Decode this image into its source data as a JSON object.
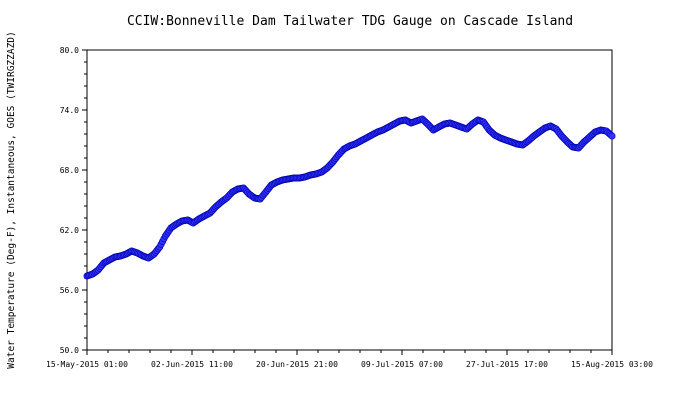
{
  "chart_data": {
    "type": "scatter",
    "title": "CCIW:Bonneville Dam Tailwater TDG Gauge on Cascade Island",
    "ylabel": "Water Temperature (Deg-F), Instantaneous, GOES (TWIRGZZAZD)",
    "xlabel": "",
    "ylim": [
      50,
      80
    ],
    "yticks": [
      50,
      56,
      62,
      68,
      74,
      80
    ],
    "ytick_labels": [
      "50.0",
      "56.0",
      "62.0",
      "68.0",
      "74.0",
      "80.0"
    ],
    "xlim": [
      "2015-05-15 01:00",
      "2015-08-15 03:00"
    ],
    "xtick_labels": [
      "15-May-2015 01:00",
      "02-Jun-2015 11:00",
      "20-Jun-2015 21:00",
      "09-Jul-2015 07:00",
      "27-Jul-2015 17:00",
      "15-Aug-2015 03:00"
    ],
    "grid": false,
    "marker_color": "#3333ff",
    "marker_edge_color": "#0000aa",
    "series": [
      {
        "x": [
          "2015-05-15 01:00",
          "2015-05-16 01:00",
          "2015-05-17 00:00",
          "2015-05-18 00:00",
          "2015-05-18 23:00",
          "2015-05-19 23:00",
          "2015-05-20 22:00",
          "2015-05-21 22:00",
          "2015-05-22 21:00",
          "2015-05-23 21:00",
          "2015-05-24 21:00",
          "2015-05-25 20:00",
          "2015-05-26 20:00",
          "2015-05-27 19:00",
          "2015-05-28 19:00",
          "2015-05-29 18:00",
          "2015-05-30 18:00",
          "2015-05-31 17:00",
          "2015-06-01 17:00",
          "2015-06-02 16:00",
          "2015-06-03 16:00",
          "2015-06-04 15:00",
          "2015-06-05 15:00",
          "2015-06-06 14:00",
          "2015-06-07 14:00",
          "2015-06-08 13:00",
          "2015-06-09 13:00",
          "2015-06-10 12:00",
          "2015-06-11 12:00",
          "2015-06-12 11:00",
          "2015-06-13 11:00",
          "2015-06-14 10:00",
          "2015-06-15 10:00",
          "2015-06-16 09:00",
          "2015-06-17 09:00",
          "2015-06-18 08:00",
          "2015-06-19 08:00",
          "2015-06-20 07:00",
          "2015-06-21 07:00",
          "2015-06-22 06:00",
          "2015-06-23 06:00",
          "2015-06-24 05:00",
          "2015-06-25 05:00",
          "2015-06-26 04:00",
          "2015-06-27 04:00",
          "2015-06-28 03:00",
          "2015-06-29 03:00",
          "2015-06-30 02:00",
          "2015-07-01 02:00",
          "2015-07-02 01:00",
          "2015-07-03 01:00",
          "2015-07-04 00:00",
          "2015-07-05 00:00",
          "2015-07-05 23:00",
          "2015-07-06 23:00",
          "2015-07-07 22:00",
          "2015-07-08 22:00",
          "2015-07-09 21:00",
          "2015-07-10 21:00",
          "2015-07-11 20:00",
          "2015-07-12 20:00",
          "2015-07-13 19:00",
          "2015-07-14 19:00",
          "2015-07-15 18:00",
          "2015-07-16 18:00",
          "2015-07-17 17:00",
          "2015-07-18 17:00",
          "2015-07-19 16:00",
          "2015-07-20 16:00",
          "2015-07-21 15:00",
          "2015-07-22 15:00",
          "2015-07-23 14:00",
          "2015-07-24 14:00",
          "2015-07-25 13:00",
          "2015-07-26 13:00",
          "2015-07-27 12:00",
          "2015-07-28 12:00",
          "2015-07-29 11:00",
          "2015-07-30 11:00",
          "2015-07-31 10:00",
          "2015-08-01 10:00",
          "2015-08-02 09:00",
          "2015-08-03 09:00",
          "2015-08-04 08:00",
          "2015-08-05 08:00",
          "2015-08-06 07:00",
          "2015-08-07 07:00",
          "2015-08-08 06:00",
          "2015-08-09 06:00",
          "2015-08-10 05:00",
          "2015-08-11 05:00",
          "2015-08-12 04:00",
          "2015-08-13 04:00",
          "2015-08-14 03:00",
          "2015-08-15 03:00"
        ],
        "y": [
          57.4,
          57.6,
          58.0,
          58.7,
          59.0,
          59.3,
          59.4,
          59.6,
          59.9,
          59.7,
          59.4,
          59.2,
          59.6,
          60.3,
          61.4,
          62.2,
          62.6,
          62.9,
          63.0,
          62.7,
          63.1,
          63.4,
          63.7,
          64.3,
          64.8,
          65.2,
          65.8,
          66.1,
          66.2,
          65.6,
          65.2,
          65.1,
          65.8,
          66.5,
          66.8,
          67.0,
          67.1,
          67.2,
          67.2,
          67.3,
          67.5,
          67.6,
          67.8,
          68.2,
          68.8,
          69.5,
          70.1,
          70.4,
          70.6,
          70.9,
          71.2,
          71.5,
          71.8,
          72.0,
          72.3,
          72.6,
          72.9,
          73.0,
          72.7,
          72.9,
          73.1,
          72.6,
          72.0,
          72.3,
          72.6,
          72.7,
          72.5,
          72.3,
          72.1,
          72.6,
          73.0,
          72.8,
          72.0,
          71.5,
          71.2,
          71.0,
          70.8,
          70.6,
          70.5,
          70.9,
          71.4,
          71.8,
          72.2,
          72.4,
          72.1,
          71.4,
          70.8,
          70.3,
          70.2,
          70.8,
          71.3,
          71.8,
          72.0,
          71.9,
          71.4
        ]
      }
    ]
  }
}
